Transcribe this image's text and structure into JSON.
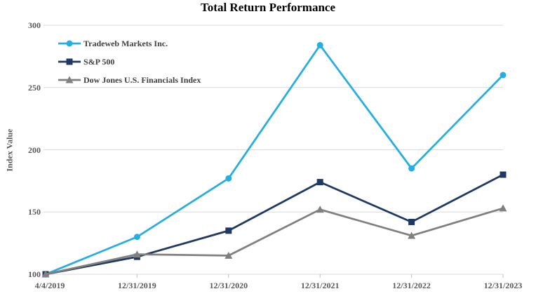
{
  "chart_data": {
    "type": "line",
    "title": "Total Return Performance",
    "ylabel": "Index Value",
    "xlabel": "",
    "categories": [
      "4/4/2019",
      "12/31/2019",
      "12/31/2020",
      "12/31/2021",
      "12/31/2022",
      "12/31/2023"
    ],
    "yticks": [
      100,
      150,
      200,
      250,
      300
    ],
    "ylim": [
      100,
      300
    ],
    "grid": "horizontal",
    "legend_position": "top-left-inside",
    "colors": {
      "gridline": "#D9D9D9",
      "axis_tick": "#BFBFBF",
      "tick_label": "#595959",
      "legend_text": "#404040",
      "title": "#000000",
      "background": "#FFFFFF"
    },
    "series": [
      {
        "name": "Tradeweb Markets Inc.",
        "color": "#24AEE2",
        "marker": "circle",
        "values": [
          100,
          130,
          177,
          284,
          185,
          260
        ]
      },
      {
        "name": "S&P 500",
        "color": "#1F3864",
        "marker": "square",
        "values": [
          100,
          114,
          135,
          174,
          142,
          180
        ]
      },
      {
        "name": "Dow Jones U.S. Financials Index",
        "color": "#808080",
        "marker": "triangle",
        "values": [
          100,
          116,
          115,
          152,
          131,
          153
        ]
      }
    ]
  }
}
